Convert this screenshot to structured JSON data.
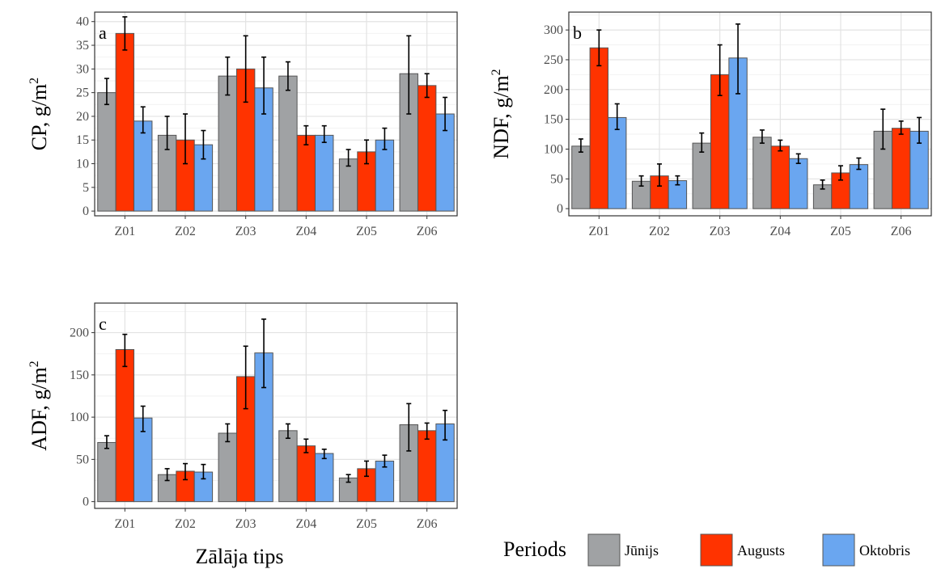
{
  "colors": {
    "Jūnijs": "#A0A2A4",
    "Augusts": "#FF3300",
    "Oktobris": "#6AA6F0",
    "grid_major": "#E3E3E3",
    "grid_minor": "#F2F2F2",
    "bar_stroke": "#555555"
  },
  "legend": {
    "title": "Periods",
    "entries": [
      "Jūnijs",
      "Augusts",
      "Oktobris"
    ],
    "placement": "bottom-right"
  },
  "x_axis_title": "Zālāja tips",
  "chart_data": [
    {
      "type": "bar",
      "panel": "a",
      "ylabel": "CP, g/m",
      "ylabel_sup": "2",
      "ylim": [
        -1,
        42
      ],
      "yticks": [
        0,
        5,
        10,
        15,
        20,
        25,
        30,
        35,
        40
      ],
      "grid": true,
      "categories": [
        "Z01",
        "Z02",
        "Z03",
        "Z04",
        "Z05",
        "Z06"
      ],
      "series": [
        {
          "name": "Jūnijs",
          "values": [
            25,
            16,
            28.5,
            28.5,
            11,
            29
          ],
          "err_low": [
            22.5,
            13,
            24.5,
            25.5,
            9.5,
            20.5
          ],
          "err_high": [
            28,
            20,
            32.5,
            31.5,
            13,
            37
          ]
        },
        {
          "name": "Augusts",
          "values": [
            37.5,
            15,
            30,
            16,
            12.5,
            26.5
          ],
          "err_low": [
            34,
            10,
            23,
            14,
            10,
            24
          ],
          "err_high": [
            41,
            20.5,
            37,
            18,
            15,
            29
          ]
        },
        {
          "name": "Oktobris",
          "values": [
            19,
            14,
            26,
            16,
            15,
            20.5
          ],
          "err_low": [
            16.5,
            11,
            20.5,
            14.5,
            13,
            17
          ],
          "err_high": [
            22,
            17,
            32.5,
            18,
            17.5,
            24
          ]
        }
      ]
    },
    {
      "type": "bar",
      "panel": "b",
      "ylabel": "NDF, g/m",
      "ylabel_sup": "2",
      "ylim": [
        -12,
        330
      ],
      "yticks": [
        0,
        50,
        100,
        150,
        200,
        250,
        300
      ],
      "grid": true,
      "categories": [
        "Z01",
        "Z02",
        "Z03",
        "Z04",
        "Z05",
        "Z06"
      ],
      "series": [
        {
          "name": "Jūnijs",
          "values": [
            105,
            46,
            110,
            120,
            40,
            130
          ],
          "err_low": [
            95,
            38,
            95,
            110,
            33,
            100
          ],
          "err_high": [
            117,
            55,
            127,
            132,
            48,
            167
          ]
        },
        {
          "name": "Augusts",
          "values": [
            270,
            55,
            225,
            105,
            60,
            135
          ],
          "err_low": [
            240,
            38,
            190,
            97,
            48,
            125
          ],
          "err_high": [
            300,
            75,
            275,
            115,
            72,
            147
          ]
        },
        {
          "name": "Oktobris",
          "values": [
            153,
            47,
            253,
            84,
            74,
            130
          ],
          "err_low": [
            133,
            40,
            193,
            76,
            66,
            110
          ],
          "err_high": [
            176,
            55,
            310,
            92,
            85,
            153
          ]
        }
      ]
    },
    {
      "type": "bar",
      "panel": "c",
      "ylabel": "ADF, g/m",
      "ylabel_sup": "2",
      "ylim": [
        -8,
        235
      ],
      "yticks": [
        0,
        50,
        100,
        150,
        200
      ],
      "grid": true,
      "categories": [
        "Z01",
        "Z02",
        "Z03",
        "Z04",
        "Z05",
        "Z06"
      ],
      "series": [
        {
          "name": "Jūnijs",
          "values": [
            70,
            32,
            81,
            84,
            28,
            91
          ],
          "err_low": [
            63,
            25,
            71,
            75,
            23,
            60
          ],
          "err_high": [
            78,
            39,
            92,
            92,
            32,
            116
          ]
        },
        {
          "name": "Augusts",
          "values": [
            180,
            36,
            148,
            66,
            39,
            84
          ],
          "err_low": [
            160,
            26,
            110,
            58,
            30,
            74
          ],
          "err_high": [
            198,
            45,
            184,
            74,
            48,
            93
          ]
        },
        {
          "name": "Oktobris",
          "values": [
            99,
            35,
            176,
            57,
            48,
            92
          ],
          "err_low": [
            83,
            27,
            135,
            51,
            41,
            73
          ],
          "err_high": [
            113,
            44,
            216,
            62,
            55,
            108
          ]
        }
      ]
    }
  ]
}
